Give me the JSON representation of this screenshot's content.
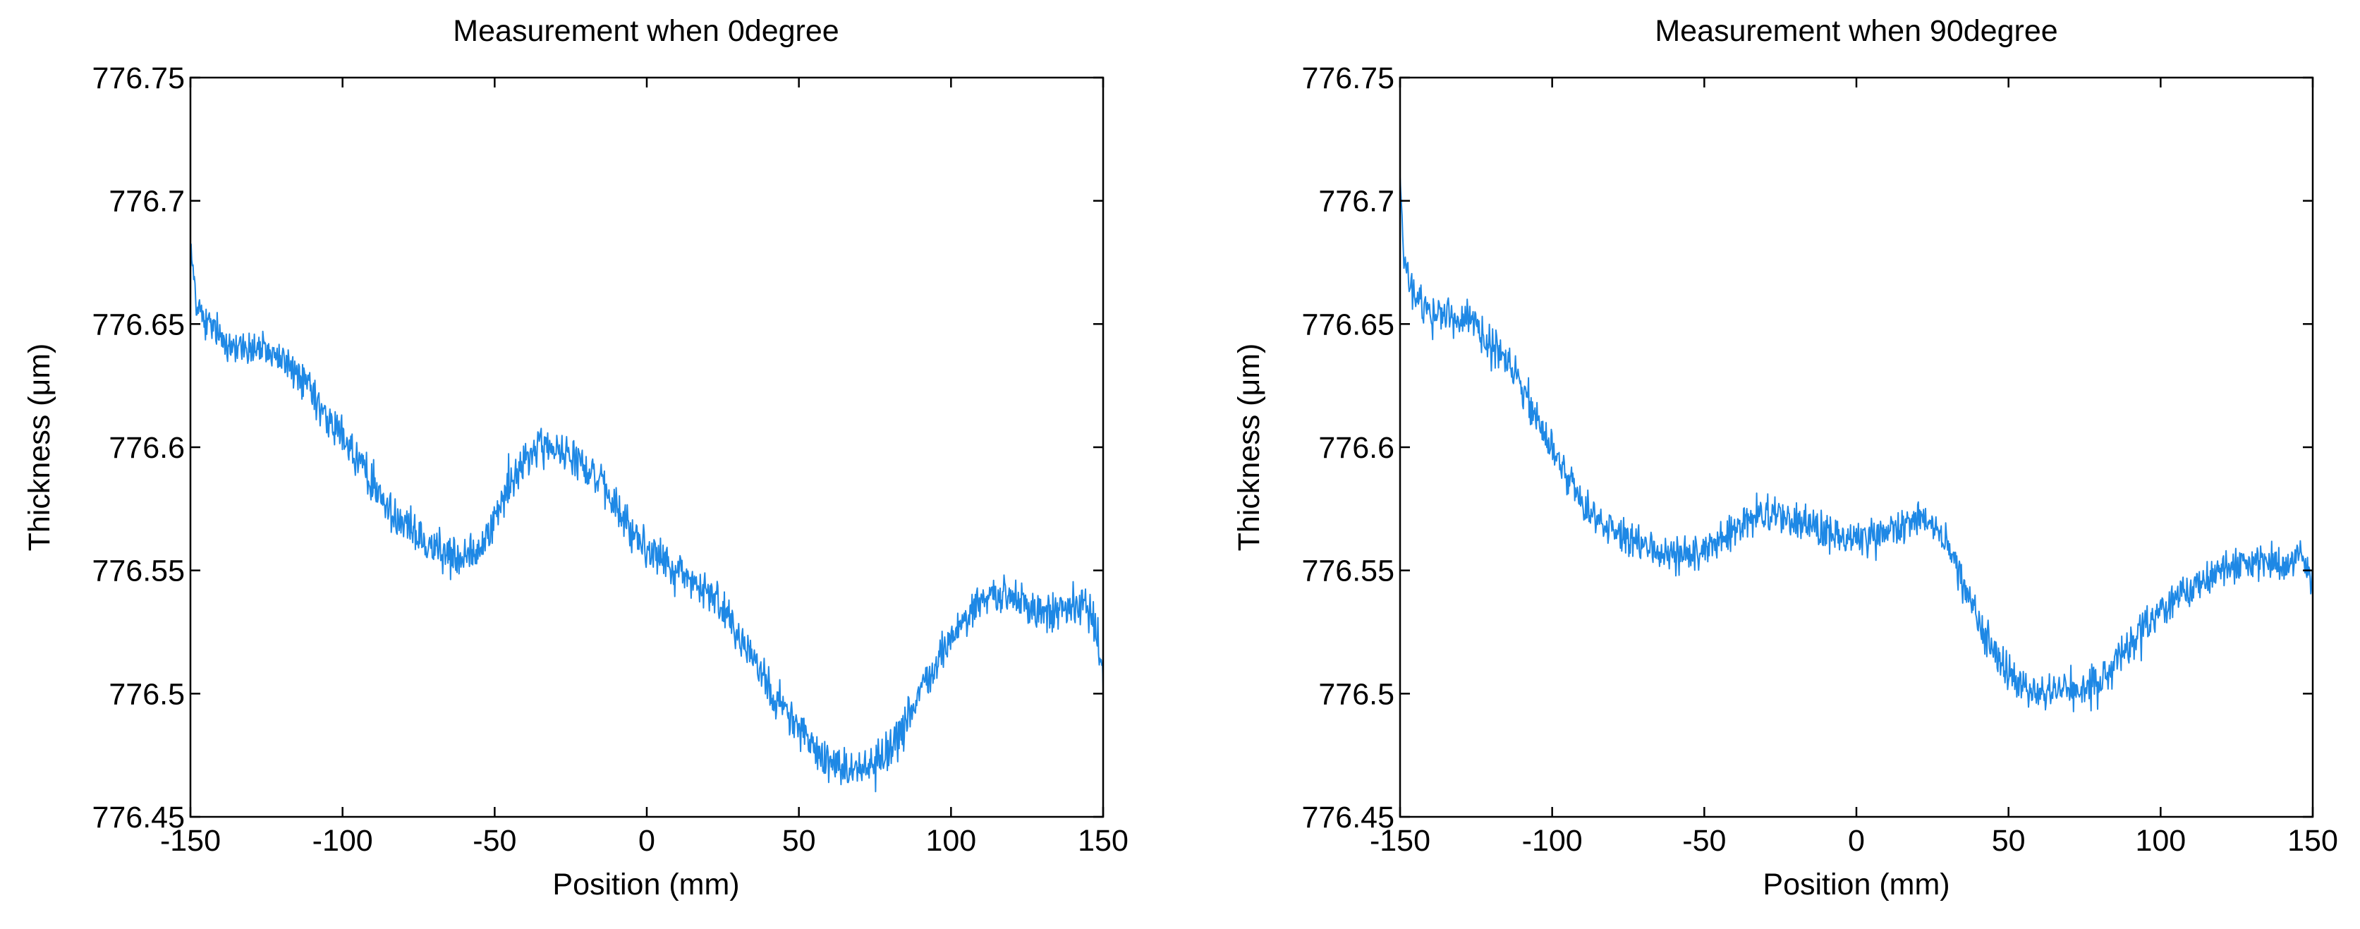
{
  "figure": {
    "colors": {
      "series": "#1E88E5",
      "axis": "#000000",
      "background": "#FFFFFF"
    }
  },
  "chart_data": [
    {
      "type": "line",
      "title": "Measurement when 0degree",
      "xlabel": "Position (mm)",
      "ylabel": "Thickness (μm)",
      "xlim": [
        -150,
        150
      ],
      "ylim": [
        776.45,
        776.75
      ],
      "xticks": [
        -150,
        -100,
        -50,
        0,
        50,
        100,
        150
      ],
      "xtick_labels": [
        "-150",
        "-100",
        "-50",
        "0",
        "50",
        "100",
        "150"
      ],
      "yticks": [
        776.45,
        776.5,
        776.55,
        776.6,
        776.65,
        776.7,
        776.75
      ],
      "ytick_labels": [
        "776.45",
        "776.5",
        "776.55",
        "776.6",
        "776.65",
        "776.7",
        "776.75"
      ],
      "noise_amplitude": 0.012,
      "series": [
        {
          "name": "Thickness",
          "color": "#1E88E5",
          "x": [
            -150,
            -148,
            -145,
            -140,
            -135,
            -130,
            -125,
            -120,
            -115,
            -110,
            -105,
            -100,
            -95,
            -90,
            -85,
            -80,
            -75,
            -70,
            -65,
            -60,
            -55,
            -50,
            -45,
            -40,
            -35,
            -30,
            -25,
            -20,
            -15,
            -10,
            -5,
            0,
            5,
            10,
            15,
            20,
            25,
            30,
            35,
            40,
            45,
            50,
            55,
            60,
            65,
            70,
            75,
            80,
            85,
            90,
            95,
            100,
            105,
            110,
            115,
            120,
            125,
            130,
            135,
            140,
            145,
            148,
            150
          ],
          "y": [
            776.68,
            776.66,
            776.65,
            776.645,
            776.64,
            776.64,
            776.64,
            776.635,
            776.63,
            776.62,
            776.61,
            776.605,
            776.595,
            776.585,
            776.575,
            776.57,
            776.565,
            776.56,
            776.555,
            776.555,
            776.56,
            776.57,
            776.585,
            776.595,
            776.6,
            776.6,
            776.598,
            776.592,
            776.585,
            776.575,
            776.565,
            776.56,
            776.555,
            776.55,
            776.545,
            776.54,
            776.535,
            776.525,
            776.515,
            776.505,
            776.495,
            776.485,
            776.478,
            776.472,
            776.47,
            776.47,
            776.472,
            776.478,
            776.488,
            776.5,
            776.512,
            776.523,
            776.532,
            776.538,
            776.54,
            776.538,
            776.535,
            776.533,
            776.533,
            776.535,
            776.535,
            776.525,
            776.51
          ]
        }
      ]
    },
    {
      "type": "line",
      "title": "Measurement when 90degree",
      "xlabel": "Position (mm)",
      "ylabel": "Thickness (μm)",
      "xlim": [
        -150,
        150
      ],
      "ylim": [
        776.45,
        776.75
      ],
      "xticks": [
        -150,
        -100,
        -50,
        0,
        50,
        100,
        150
      ],
      "xtick_labels": [
        "-150",
        "-100",
        "-50",
        "0",
        "50",
        "100",
        "150"
      ],
      "yticks": [
        776.45,
        776.5,
        776.55,
        776.6,
        776.65,
        776.7,
        776.75
      ],
      "ytick_labels": [
        "776.45",
        "776.5",
        "776.55",
        "776.6",
        "776.65",
        "776.7",
        "776.75"
      ],
      "noise_amplitude": 0.011,
      "series": [
        {
          "name": "Thickness",
          "color": "#1E88E5",
          "x": [
            -150,
            -149,
            -147,
            -145,
            -140,
            -135,
            -130,
            -125,
            -120,
            -115,
            -110,
            -105,
            -100,
            -95,
            -90,
            -85,
            -80,
            -75,
            -70,
            -65,
            -60,
            -55,
            -50,
            -45,
            -40,
            -35,
            -30,
            -25,
            -20,
            -15,
            -10,
            -5,
            0,
            5,
            10,
            15,
            20,
            25,
            30,
            35,
            40,
            45,
            50,
            55,
            60,
            65,
            70,
            75,
            80,
            85,
            90,
            95,
            100,
            105,
            110,
            115,
            120,
            125,
            130,
            135,
            140,
            145,
            148,
            150
          ],
          "y": [
            776.71,
            776.68,
            776.665,
            776.66,
            776.655,
            776.655,
            776.652,
            776.648,
            776.642,
            776.635,
            776.625,
            776.61,
            776.6,
            776.588,
            776.578,
            776.57,
            776.565,
            776.562,
            776.56,
            776.557,
            776.556,
            776.556,
            776.558,
            776.562,
            776.566,
            776.57,
            776.572,
            776.572,
            776.57,
            776.568,
            776.566,
            776.563,
            776.562,
            776.563,
            776.566,
            776.568,
            776.57,
            776.568,
            776.56,
            776.545,
            776.53,
            776.518,
            776.508,
            776.502,
            776.5,
            776.5,
            776.5,
            776.502,
            776.506,
            776.512,
            776.52,
            776.528,
            776.534,
            776.538,
            776.542,
            776.546,
            776.55,
            776.552,
            776.553,
            776.553,
            776.552,
            776.555,
            776.553,
            776.545
          ]
        }
      ]
    }
  ]
}
